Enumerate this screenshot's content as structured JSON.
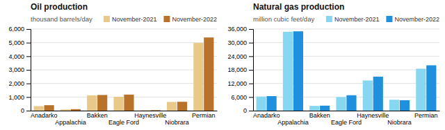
{
  "chart_data": [
    {
      "type": "bar",
      "title": "Oil production",
      "subtitle": "thousand barrels/day",
      "categories": [
        "Anadarko",
        "Appalachia",
        "Bakken",
        "Eagle Ford",
        "Haynesville",
        "Niobrara",
        "Permian"
      ],
      "series": [
        {
          "name": "November-2021",
          "color": "#e8c98a",
          "values": [
            330,
            90,
            1120,
            1020,
            30,
            640,
            4980
          ]
        },
        {
          "name": "November-2022",
          "color": "#b8722a",
          "values": [
            400,
            110,
            1150,
            1180,
            35,
            650,
            5380
          ]
        }
      ],
      "ylim": [
        0,
        6000
      ],
      "yticks": [
        0,
        {
          "value": 1000,
          "label": "1,000"
        },
        {
          "value": 2000,
          "label": "2,000"
        },
        {
          "value": 3000,
          "label": "3,000"
        },
        {
          "value": 4000,
          "label": "4,000"
        },
        {
          "value": 5000,
          "label": "5,000"
        },
        {
          "value": 6000,
          "label": "6,000"
        }
      ],
      "grid": true,
      "legend": "top"
    },
    {
      "type": "bar",
      "title": "Natural gas production",
      "subtitle": "million cubic feet/day",
      "categories": [
        "Anadarko",
        "Appalachia",
        "Bakken",
        "Eagle Ford",
        "Haynesville",
        "Niobrara",
        "Permian"
      ],
      "series": [
        {
          "name": "November-2021",
          "color": "#87d7f0",
          "values": [
            6200,
            34800,
            2100,
            6000,
            13300,
            4800,
            18500
          ]
        },
        {
          "name": "November-2022",
          "color": "#1e90dd",
          "values": [
            6400,
            35000,
            2200,
            6800,
            15000,
            4600,
            20000
          ]
        }
      ],
      "ylim": [
        0,
        36000
      ],
      "yticks": [
        0,
        {
          "value": 6000,
          "label": "6,000"
        },
        {
          "value": 12000,
          "label": "12,000"
        },
        {
          "value": 18000,
          "label": "18,000"
        },
        {
          "value": 24000,
          "label": "24,000"
        },
        {
          "value": 30000,
          "label": "30,000"
        },
        {
          "value": 36000,
          "label": "36,000"
        }
      ],
      "grid": true,
      "legend": "top"
    }
  ]
}
